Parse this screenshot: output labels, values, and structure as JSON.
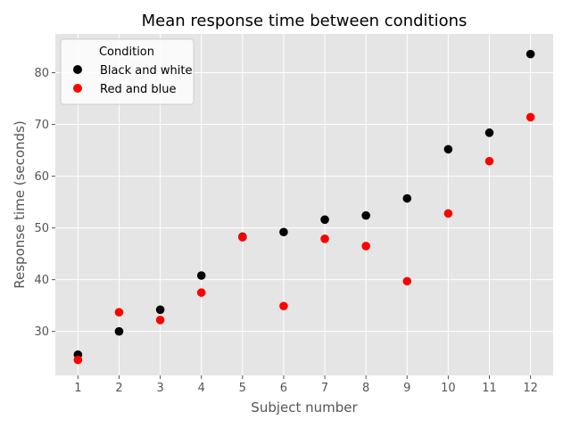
{
  "chart_data": {
    "type": "scatter",
    "title": "Mean response time between conditions",
    "xlabel": "Subject number",
    "ylabel": "Response time (seconds)",
    "x": [
      1,
      2,
      3,
      4,
      5,
      6,
      7,
      8,
      9,
      10,
      11,
      12
    ],
    "xticks": [
      "1",
      "2",
      "3",
      "4",
      "5",
      "6",
      "7",
      "8",
      "9",
      "10",
      "11",
      "12"
    ],
    "yticks": [
      30,
      40,
      50,
      60,
      70,
      80
    ],
    "xlim": [
      0.45,
      12.55
    ],
    "ylim": [
      21.5,
      87.5
    ],
    "grid": true,
    "legend": {
      "title": "Condition",
      "placement": "top-left"
    },
    "series": [
      {
        "name": "Black and white",
        "color": "#000000",
        "values": [
          25.5,
          30.0,
          34.2,
          40.8,
          48.3,
          49.2,
          51.6,
          52.4,
          55.7,
          65.2,
          68.4,
          83.6
        ]
      },
      {
        "name": "Red and blue",
        "color": "#ff0000",
        "values": [
          24.5,
          33.7,
          32.2,
          37.5,
          48.2,
          34.9,
          47.9,
          46.5,
          39.7,
          52.8,
          62.9,
          71.4
        ]
      }
    ]
  }
}
